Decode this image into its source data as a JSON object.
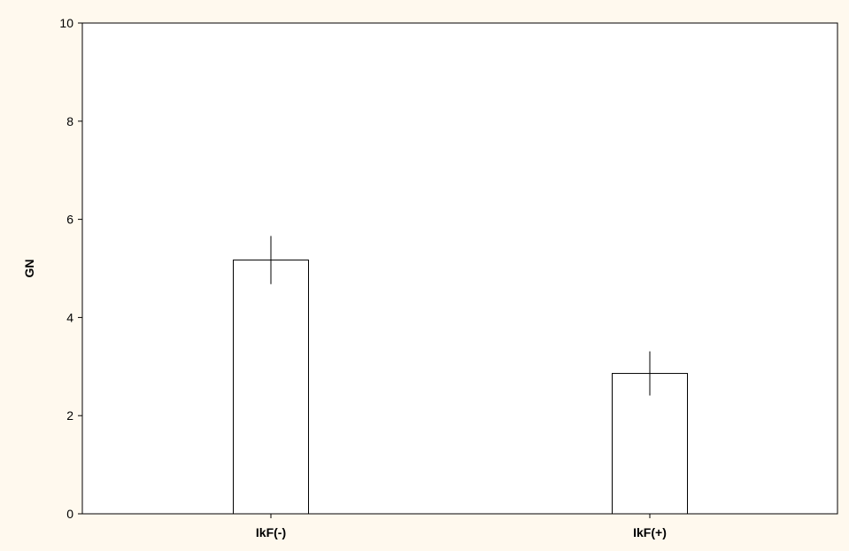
{
  "chart_data": {
    "type": "bar",
    "title": "",
    "xlabel": "",
    "ylabel": "GN",
    "categories": [
      "IkF(-)",
      "IkF(+)"
    ],
    "values": [
      5.17,
      2.86
    ],
    "error_low": [
      4.68,
      2.41
    ],
    "error_high": [
      5.66,
      3.31
    ],
    "ylim": [
      0,
      10
    ],
    "yticks": [
      0,
      2,
      4,
      6,
      8,
      10
    ],
    "grid": false,
    "legend": "none",
    "colors": {
      "background": "#fff9ee",
      "plot_area": "#ffffff",
      "bar_fill": "#ffffff",
      "stroke": "#000000"
    }
  }
}
